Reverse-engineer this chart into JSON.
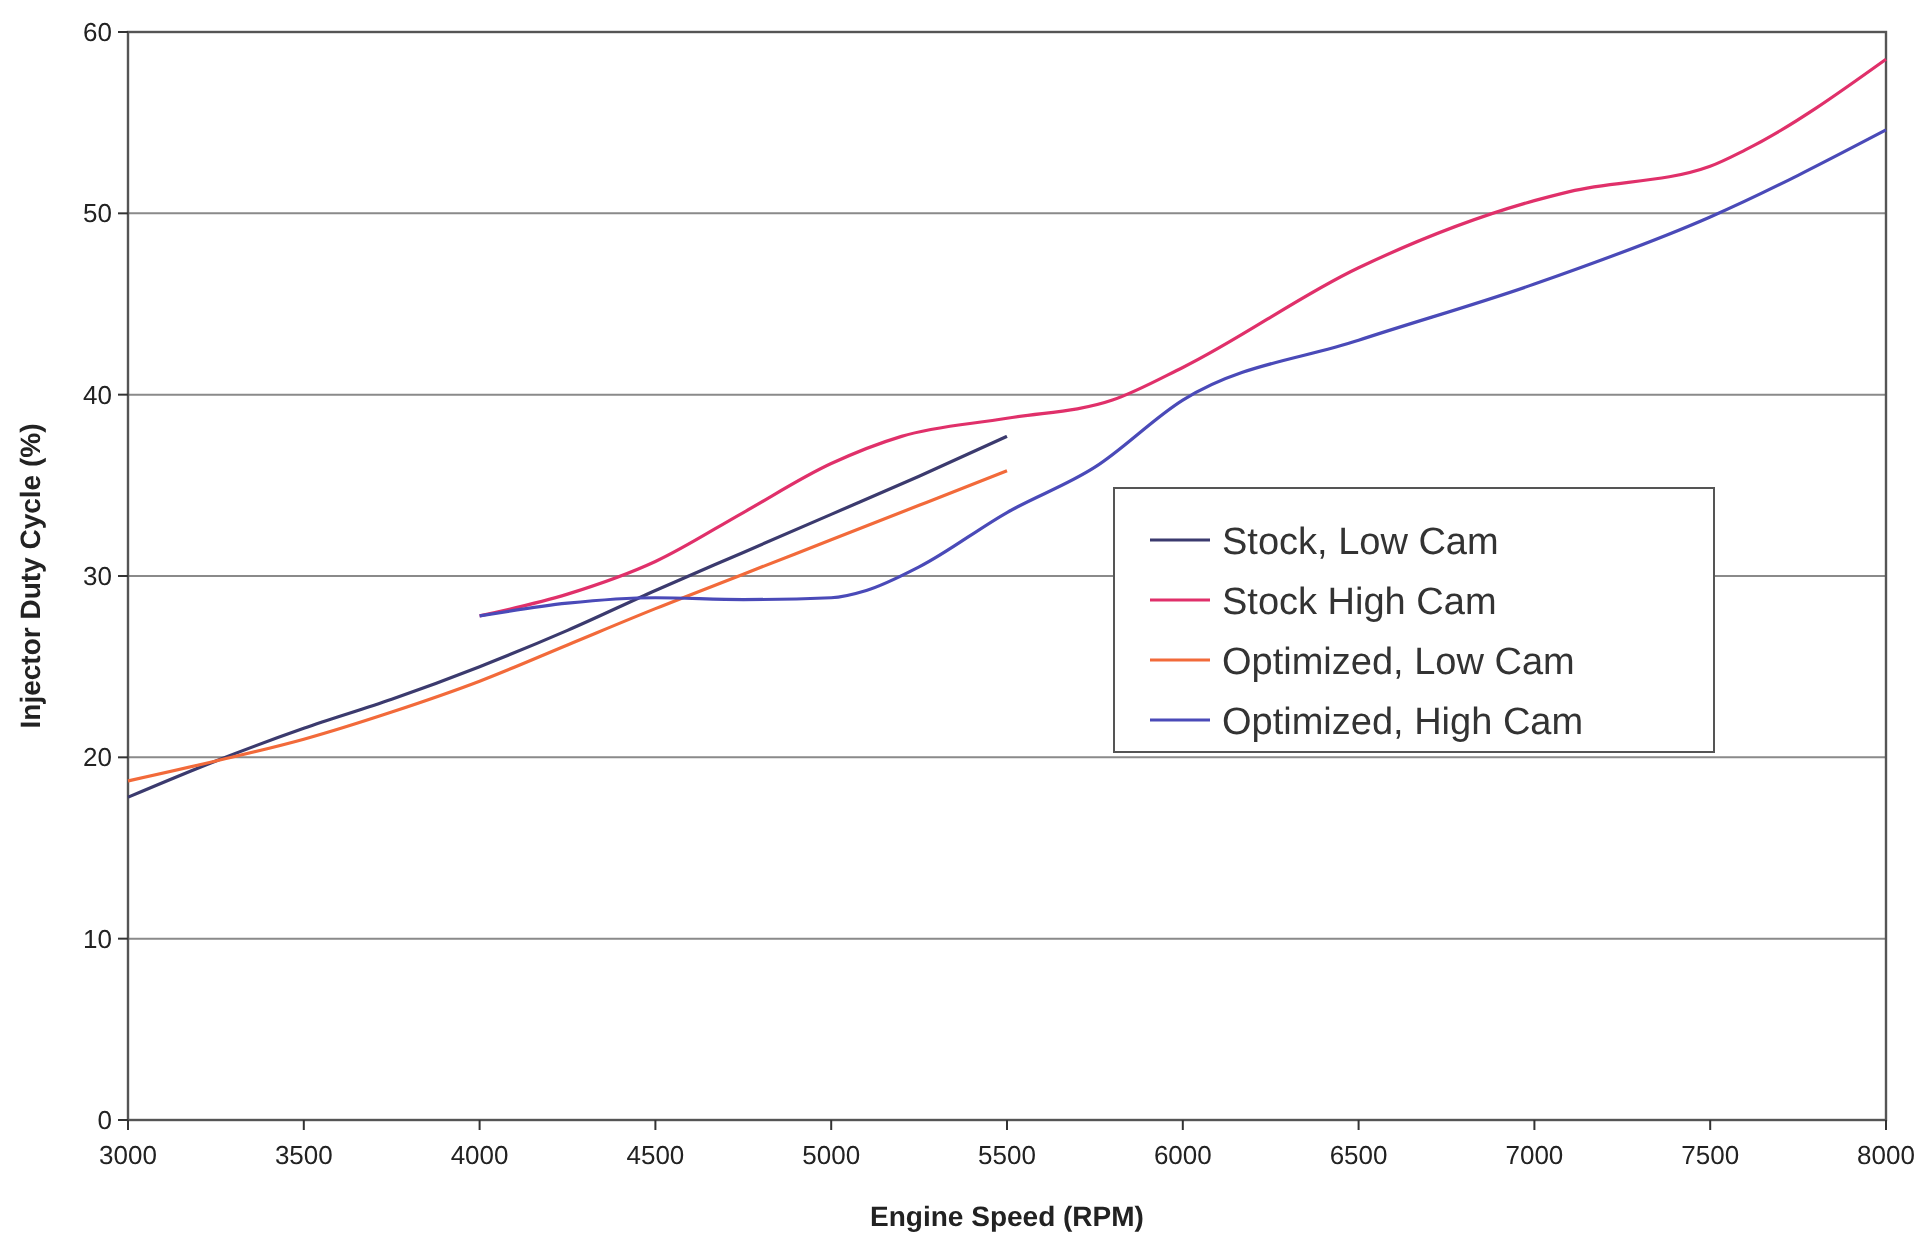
{
  "chart_data": {
    "type": "line",
    "xlabel": "Engine Speed (RPM)",
    "ylabel": "Injector Duty Cycle (%)",
    "xlim": [
      3000,
      8000
    ],
    "xticks": [
      3000,
      3500,
      4000,
      4500,
      5000,
      5500,
      6000,
      6500,
      7000,
      7500,
      8000
    ],
    "ylim": [
      0,
      60
    ],
    "yticks": [
      0,
      10,
      20,
      30,
      40,
      50,
      60
    ],
    "grid": "y",
    "legend": "right",
    "marker": "none",
    "line_style": "solid",
    "series": [
      {
        "name": "Stock, Low Cam",
        "color": "#3b3a6e",
        "x": [
          3000,
          3250,
          3500,
          3750,
          4000,
          4250,
          4500,
          4750,
          5000,
          5250,
          5500
        ],
        "values": [
          17.8,
          19.8,
          21.6,
          23.2,
          25,
          27,
          29.2,
          31.3,
          33.4,
          35.5,
          37.7
        ]
      },
      {
        "name": "Stock High Cam",
        "color": "#e0306a",
        "x": [
          4000,
          4250,
          4500,
          4750,
          5000,
          5200,
          5500,
          5800,
          6000,
          6500,
          7000,
          7100,
          7500,
          7600,
          8000
        ],
        "values": [
          27.8,
          29,
          30.8,
          33.5,
          36.2,
          37.7,
          38.7,
          39.7,
          41.5,
          47,
          50.7,
          51.2,
          52.6,
          53.5,
          58.5
        ]
      },
      {
        "name": "Optimized, Low Cam",
        "color": "#f26a3a",
        "x": [
          3000,
          3250,
          3500,
          3750,
          4000,
          4250,
          4500,
          4750,
          5000,
          5250,
          5500
        ],
        "values": [
          18.7,
          19.8,
          21,
          22.5,
          24.2,
          26.2,
          28.2,
          30.1,
          32,
          33.9,
          35.8
        ]
      },
      {
        "name": "Optimized, High Cam",
        "color": "#4a4ab8",
        "x": [
          4000,
          4250,
          4500,
          4750,
          5000,
          5100,
          5250,
          5500,
          5750,
          6000,
          6500,
          7000,
          7500,
          8000
        ],
        "values": [
          27.8,
          28.5,
          28.8,
          28.7,
          28.8,
          29.2,
          30.5,
          33.5,
          36,
          39.7,
          43,
          46.1,
          49.8,
          54.6
        ]
      }
    ]
  }
}
